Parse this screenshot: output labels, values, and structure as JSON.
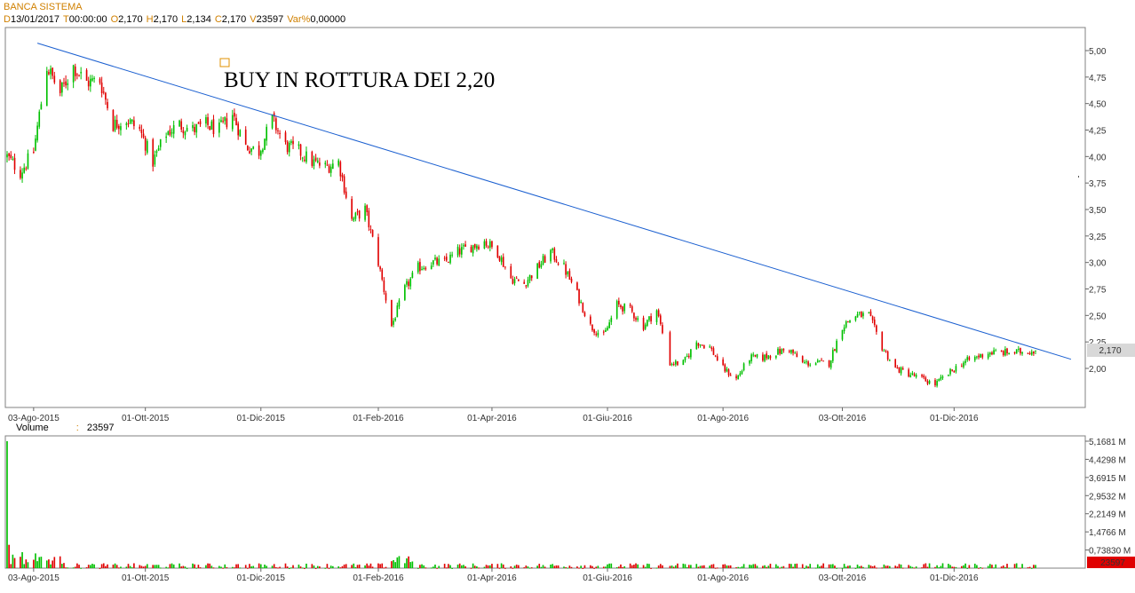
{
  "header": {
    "title": "BANCA SISTEMA",
    "ohlc": [
      {
        "key": "D",
        "value": "13/01/2017"
      },
      {
        "key": "T",
        "value": "00:00:00"
      },
      {
        "key": "O",
        "value": "2,170"
      },
      {
        "key": "H",
        "value": "2,170"
      },
      {
        "key": "L",
        "value": "2,134"
      },
      {
        "key": "C",
        "value": "2,170"
      },
      {
        "key": "V",
        "value": "23597"
      },
      {
        "key": "Var%",
        "value": "0,00000"
      }
    ]
  },
  "volume_header": {
    "label": "Volume",
    "sep": ":",
    "value": "23597"
  },
  "annotation": {
    "text": "BUY IN ROTTURA DEI 2,20"
  },
  "colors": {
    "up": "#00c000",
    "down": "#e00000",
    "trendline": "#1a5fd0",
    "title": "#d08000",
    "grid": "#808080"
  },
  "chart_data": [
    {
      "type": "candlestick",
      "title": "BANCA SISTEMA",
      "x_tick_labels": [
        "03-Ago-2015",
        "01-Ott-2015",
        "01-Dic-2015",
        "01-Feb-2016",
        "01-Apr-2016",
        "01-Giu-2016",
        "01-Ago-2016",
        "03-Ott-2016",
        "01-Dic-2016"
      ],
      "y_tick_labels": [
        "5,00",
        "4,75",
        "4,50",
        "4,25",
        "4,00",
        "3,75",
        "3,50",
        "3,25",
        "3,00",
        "2,75",
        "2,50",
        "2,25",
        "2,00"
      ],
      "ylim": [
        1.8,
        5.2
      ],
      "last_price_label": "2,170",
      "anchors": [
        [
          "2015-07-20",
          4.0
        ],
        [
          "2015-07-27",
          3.85
        ],
        [
          "2015-08-03",
          4.05
        ],
        [
          "2015-08-10",
          4.85
        ],
        [
          "2015-08-17",
          4.6
        ],
        [
          "2015-08-24",
          4.85
        ],
        [
          "2015-08-31",
          4.7
        ],
        [
          "2015-09-07",
          4.72
        ],
        [
          "2015-09-14",
          4.3
        ],
        [
          "2015-09-21",
          4.35
        ],
        [
          "2015-09-28",
          4.25
        ],
        [
          "2015-10-05",
          3.95
        ],
        [
          "2015-10-12",
          4.22
        ],
        [
          "2015-10-19",
          4.3
        ],
        [
          "2015-10-26",
          4.25
        ],
        [
          "2015-11-02",
          4.3
        ],
        [
          "2015-11-09",
          4.25
        ],
        [
          "2015-11-16",
          4.4
        ],
        [
          "2015-11-23",
          4.1
        ],
        [
          "2015-11-30",
          4.05
        ],
        [
          "2015-12-07",
          4.35
        ],
        [
          "2015-12-14",
          4.1
        ],
        [
          "2015-12-21",
          4.05
        ],
        [
          "2015-12-28",
          3.95
        ],
        [
          "2016-01-04",
          3.9
        ],
        [
          "2016-01-11",
          3.95
        ],
        [
          "2016-01-18",
          3.4
        ],
        [
          "2016-01-25",
          3.5
        ],
        [
          "2016-02-01",
          3.0
        ],
        [
          "2016-02-08",
          2.4
        ],
        [
          "2016-02-15",
          2.75
        ],
        [
          "2016-02-22",
          2.95
        ],
        [
          "2016-02-29",
          3.0
        ],
        [
          "2016-03-07",
          3.0
        ],
        [
          "2016-03-14",
          3.1
        ],
        [
          "2016-03-21",
          3.15
        ],
        [
          "2016-03-28",
          3.2
        ],
        [
          "2016-04-04",
          3.1
        ],
        [
          "2016-04-11",
          2.85
        ],
        [
          "2016-04-18",
          2.8
        ],
        [
          "2016-04-25",
          2.95
        ],
        [
          "2016-05-02",
          3.1
        ],
        [
          "2016-05-09",
          2.95
        ],
        [
          "2016-05-16",
          2.7
        ],
        [
          "2016-05-23",
          2.4
        ],
        [
          "2016-05-30",
          2.3
        ],
        [
          "2016-06-06",
          2.6
        ],
        [
          "2016-06-13",
          2.55
        ],
        [
          "2016-06-20",
          2.4
        ],
        [
          "2016-06-27",
          2.55
        ],
        [
          "2016-07-04",
          2.05
        ],
        [
          "2016-07-11",
          2.05
        ],
        [
          "2016-07-18",
          2.25
        ],
        [
          "2016-07-25",
          2.2
        ],
        [
          "2016-08-01",
          2.0
        ],
        [
          "2016-08-08",
          1.9
        ],
        [
          "2016-08-15",
          2.1
        ],
        [
          "2016-08-22",
          2.1
        ],
        [
          "2016-08-29",
          2.15
        ],
        [
          "2016-09-05",
          2.18
        ],
        [
          "2016-09-12",
          2.05
        ],
        [
          "2016-09-19",
          2.05
        ],
        [
          "2016-09-26",
          2.05
        ],
        [
          "2016-10-03",
          2.4
        ],
        [
          "2016-10-10",
          2.5
        ],
        [
          "2016-10-17",
          2.5
        ],
        [
          "2016-10-24",
          2.2
        ],
        [
          "2016-10-31",
          2.0
        ],
        [
          "2016-11-07",
          1.95
        ],
        [
          "2016-11-14",
          1.9
        ],
        [
          "2016-11-21",
          1.85
        ],
        [
          "2016-11-28",
          1.95
        ],
        [
          "2016-12-05",
          2.05
        ],
        [
          "2016-12-12",
          2.1
        ],
        [
          "2016-12-19",
          2.15
        ],
        [
          "2016-12-26",
          2.15
        ],
        [
          "2017-01-02",
          2.15
        ],
        [
          "2017-01-13",
          2.17
        ]
      ],
      "gaps": [
        [
          "2016-06-30",
          "2016-07-04"
        ]
      ],
      "trendline": {
        "from": [
          "2015-08-05",
          5.07
        ],
        "to": [
          "2017-01-20",
          2.12
        ]
      },
      "annotation": "BUY IN ROTTURA DEI 2,20"
    },
    {
      "type": "bar",
      "title": "Volume",
      "y_tick_labels": [
        "5,1681 M",
        "4,4298 M",
        "3,6915 M",
        "2,9532 M",
        "2,2149 M",
        "1,4766 M",
        "0,73830 M"
      ],
      "ylim": [
        0,
        5.1681
      ],
      "units": "M",
      "last_value_label": "23597",
      "spike": {
        "date": "2015-07-20",
        "value": 5.1681
      },
      "early_high": [
        [
          "2015-07-21",
          0.95
        ],
        [
          "2015-07-23",
          0.55
        ],
        [
          "2015-07-28",
          0.65
        ],
        [
          "2015-08-04",
          0.6
        ],
        [
          "2015-08-06",
          0.45
        ]
      ],
      "typical_max": 0.2
    }
  ]
}
